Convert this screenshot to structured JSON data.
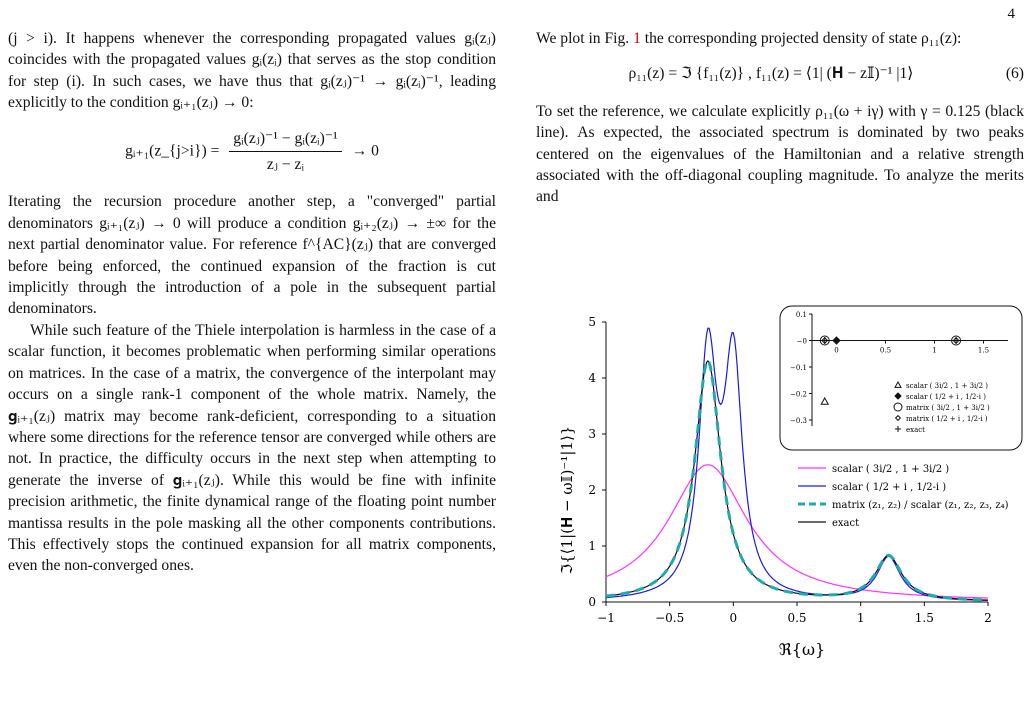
{
  "page_number": "4",
  "left_column": {
    "p1": "(j > i). It happens whenever the corresponding propagated values gᵢ(zⱼ) coincides with the propagated values gᵢ(zᵢ) that serves as the stop condition for step (i). In such cases, we have thus that gᵢ(zⱼ)⁻¹ → gᵢ(zᵢ)⁻¹, leading explicitly to the condition gᵢ₊₁(zⱼ) → 0:",
    "eq_lhs": "gᵢ₊₁(z_{j>i}) =",
    "eq_num": "gᵢ(zⱼ)⁻¹ − gᵢ(zᵢ)⁻¹",
    "eq_den": "zⱼ − zᵢ",
    "eq_rhs": "→ 0",
    "p2": "Iterating the recursion procedure another step, a \"converged\" partial denominators gᵢ₊₁(zⱼ) → 0 will produce a condition gᵢ₊₂(zⱼ) → ±∞ for the next partial denominator value. For reference f^{AC}(zⱼ) that are converged before being enforced, the continued expansion of the fraction is cut implicitly through the introduction of a pole in the subsequent partial denominators.",
    "p3": "While such feature of the Thiele interpolation is harmless in the case of a scalar function, it becomes problematic when performing similar operations on matrices. In the case of a matrix, the convergence of the interpolant may occurs on a single rank-1 component of the whole matrix. Namely, the 𝐠ᵢ₊₁(zⱼ) matrix may become rank-deficient, corresponding to a situation where some directions for the reference tensor are converged while others are not. In practice, the difficulty occurs in the next step when attempting to generate the inverse of 𝐠ᵢ₊₁(zⱼ). While this would be fine with infinite precision arithmetic, the finite dynamical range of the floating point number mantissa results in the pole masking all the other components contributions. This effectively stops the continued expansion for all matrix components, even the non-converged ones."
  },
  "right_column": {
    "p1_a": "We plot in Fig. ",
    "p1_ref": "1",
    "p1_b": " the corresponding projected density of state ρ₁₁(z):",
    "eq": "ρ₁₁(z) = ℑ {f₁₁(z)} ,   f₁₁(z) = ⟨1| (𝐇 − z𝕀)⁻¹ |1⟩",
    "eq_number": "(6)",
    "p2": "To set the reference, we calculate explicitly ρ₁₁(ω + iγ) with γ = 0.125 (black line). As expected, the associated spectrum is dominated by two peaks centered on the eigenvalues of the Hamiltonian and a relative strength associated with the off-diagonal coupling magnitude. To analyze the merits and"
  },
  "chart_data": {
    "type": "line",
    "xlabel": "ℜ{ω}",
    "ylabel": "ℑ{⟨1|(𝐇 − ω𝕀)⁻¹|1⟩}",
    "xlim": [
      -1,
      2
    ],
    "ylim": [
      0,
      5
    ],
    "x_ticks": [
      "−1",
      "−0.5",
      "0",
      "0.5",
      "1",
      "1.5",
      "2"
    ],
    "y_ticks": [
      "0",
      "1",
      "2",
      "3",
      "4",
      "5"
    ],
    "series": [
      {
        "name": "scalar ( 3i/2 , 1 + 3i/2 )",
        "color": "#ff33ff",
        "style": "solid",
        "lorentzians": [
          {
            "center": -0.2,
            "height": 2.45,
            "gamma": 0.38
          }
        ]
      },
      {
        "name": "scalar ( 1/2 + i , 1/2-i )",
        "color": "#1a1ae6",
        "style": "solid",
        "lorentzians": [
          {
            "center": -0.2,
            "height": 4.25,
            "gamma": 0.085
          },
          {
            "center": 0.0,
            "height": 4.15,
            "gamma": 0.085
          },
          {
            "center": 1.22,
            "height": 0.78,
            "gamma": 0.11
          }
        ]
      },
      {
        "name": "matrix (z₁, z₂) / scalar (z₁, z₂, z₃, z₄)",
        "color": "#22aaaa",
        "style": "dashed",
        "lorentzians": [
          {
            "center": -0.2,
            "height": 4.3,
            "gamma": 0.125
          },
          {
            "center": 1.22,
            "height": 0.8,
            "gamma": 0.125
          }
        ]
      },
      {
        "name": "exact",
        "color": "#111111",
        "style": "solid",
        "lorentzians": [
          {
            "center": -0.2,
            "height": 4.3,
            "gamma": 0.125
          },
          {
            "center": 1.22,
            "height": 0.8,
            "gamma": 0.125
          }
        ]
      }
    ],
    "inset": {
      "xlim": [
        -0.25,
        1.75
      ],
      "ylim": [
        -0.3,
        0.1
      ],
      "x_ticks": [
        "0",
        "0.5",
        "1",
        "1.5"
      ],
      "y_ticks": [
        "0.1",
        "−0",
        "−0.1",
        "−0.2",
        "−0.3"
      ],
      "legend": [
        {
          "marker": "triangle",
          "label": "scalar ( 3i/2 , 1 + 3i/2 )"
        },
        {
          "marker": "diamond-filled",
          "label": "scalar ( 1/2 + i , 1/2-i )"
        },
        {
          "marker": "circle",
          "label": "matrix ( 3i/2 , 1 + 3i/2 )"
        },
        {
          "marker": "diamond",
          "label": "matrix ( 1/2 + i , 1/2-i )"
        },
        {
          "marker": "plus",
          "label": "exact"
        }
      ],
      "points": [
        {
          "marker": "triangle",
          "x": -0.12,
          "y": -0.23
        },
        {
          "marker": "diamond-filled",
          "x": 0.0,
          "y": 0.0
        },
        {
          "marker": "circle",
          "x": -0.12,
          "y": 0.0
        },
        {
          "marker": "circle",
          "x": 1.22,
          "y": 0.0
        },
        {
          "marker": "diamond",
          "x": -0.12,
          "y": 0.0
        },
        {
          "marker": "diamond",
          "x": 1.22,
          "y": 0.0
        },
        {
          "marker": "plus",
          "x": -0.12,
          "y": 0.0
        },
        {
          "marker": "plus",
          "x": 1.22,
          "y": 0.0
        }
      ]
    }
  }
}
